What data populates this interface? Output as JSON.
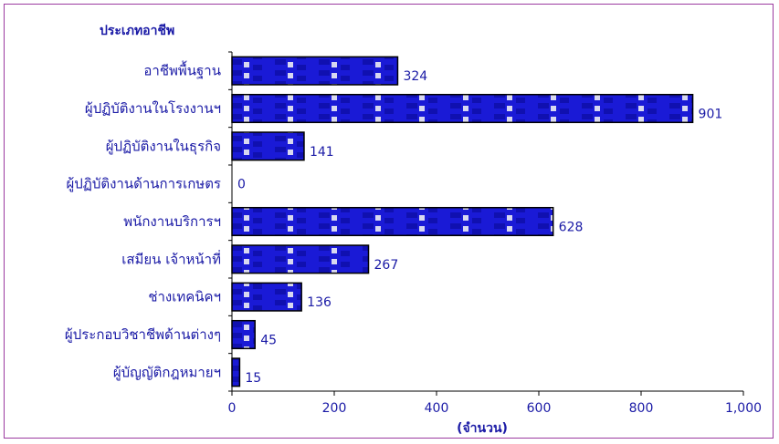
{
  "chart_data": {
    "type": "bar",
    "orientation": "horizontal",
    "title": "ประเภทอาชีพ",
    "xlabel": "(จำนวน)",
    "ylabel": "",
    "xlim": [
      0,
      1000
    ],
    "x_ticks": [
      "0",
      "200",
      "400",
      "600",
      "800",
      "1,000"
    ],
    "categories": [
      "อาชีพพื้นฐาน",
      "ผู้ปฏิบัติงานในโรงงานฯ",
      "ผู้ปฏิบัติงานในธุรกิจ",
      "ผู้ปฏิบัติงานด้านการเกษตร",
      "พนักงานบริการฯ",
      "เสมียน   เจ้าหน้าที่",
      "ช่างเทคนิคฯ",
      "ผู้ประกอบวิชาชีพด้านต่างๆ",
      "ผู้บัญญัติกฎหมายฯ"
    ],
    "values": [
      324,
      901,
      141,
      0,
      628,
      267,
      136,
      45,
      15
    ],
    "grid": false,
    "legend": "none",
    "colors": {
      "bar_fill": "#1a1ad6",
      "bar_pattern_dark": "#1010b0",
      "bar_pattern_light": "#d8d8f0",
      "text": "#1a1aa6",
      "frame": "#9b3aa0",
      "axis": "#000000"
    }
  }
}
